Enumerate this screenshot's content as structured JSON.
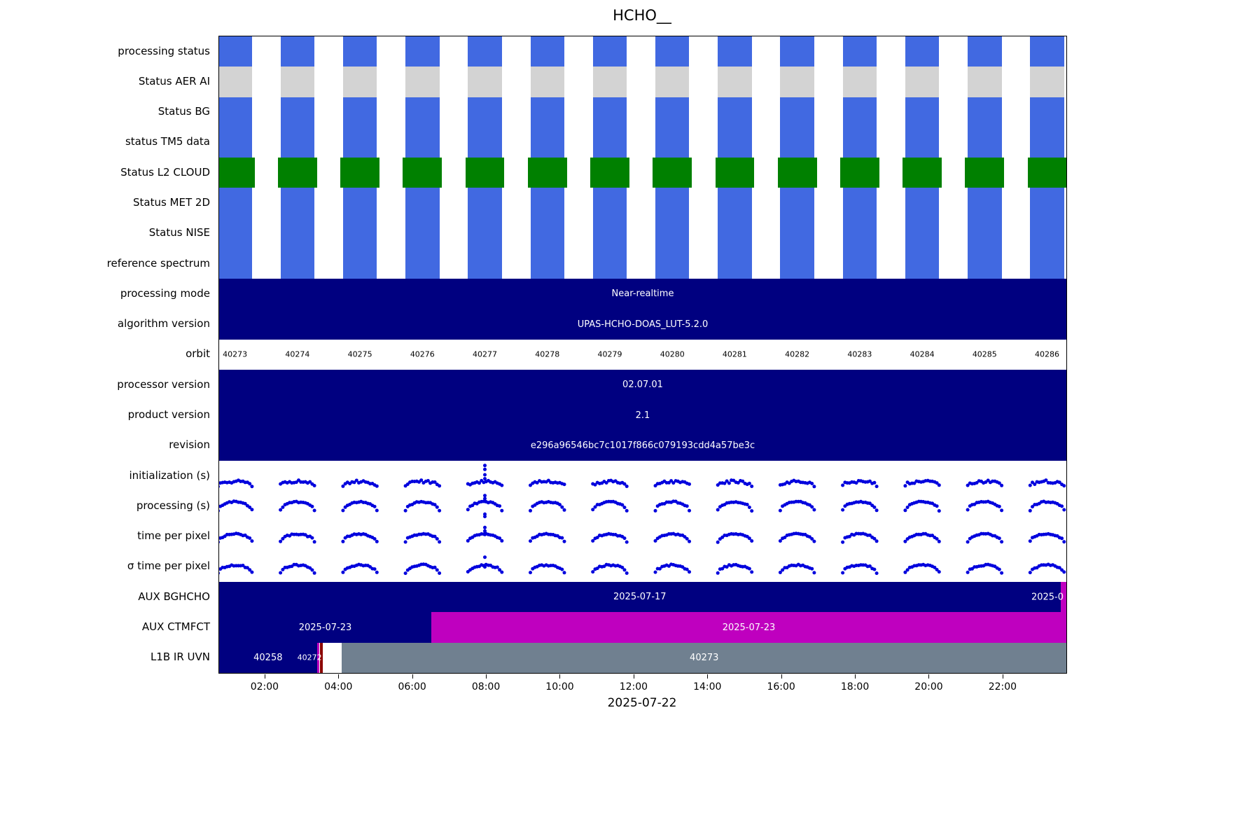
{
  "chart_data": {
    "type": "timeline-status",
    "title": "HCHO__",
    "xlabel": "2025-07-22",
    "x_ticks": [
      "02:00",
      "04:00",
      "06:00",
      "08:00",
      "10:00",
      "12:00",
      "14:00",
      "16:00",
      "18:00",
      "20:00",
      "22:00"
    ],
    "time_range_hours": [
      0.75,
      23.71
    ],
    "orbit_numbers": [
      40273,
      40274,
      40275,
      40276,
      40277,
      40278,
      40279,
      40280,
      40281,
      40282,
      40283,
      40284,
      40285,
      40286
    ],
    "orbit_first_center_hours": 1.18,
    "orbit_period_hours": 1.693,
    "legend": "none",
    "grid": "off",
    "colors": {
      "blue": "#4169e1",
      "lightgray": "#d3d3d3",
      "green": "#008000",
      "navy": "#000080",
      "magenta": "#bf00bf",
      "darkred": "#8b0000",
      "slategray": "#708090",
      "white": "#ffffff",
      "dot": "#0000dd"
    },
    "rows": [
      {
        "label": "processing status",
        "type": "blocks",
        "color_key": "blue",
        "block_width_hours": 0.92
      },
      {
        "label": "Status AER AI",
        "type": "blocks",
        "color_key": "lightgray",
        "block_width_hours": 0.92
      },
      {
        "label": "Status BG",
        "type": "blocks",
        "color_key": "blue",
        "block_width_hours": 0.92
      },
      {
        "label": "status TM5 data",
        "type": "blocks",
        "color_key": "blue",
        "block_width_hours": 0.92
      },
      {
        "label": "Status L2  CLOUD",
        "type": "blocks",
        "color_key": "green",
        "block_width_hours": 1.06
      },
      {
        "label": "Status MET 2D",
        "type": "blocks",
        "color_key": "blue",
        "block_width_hours": 0.92
      },
      {
        "label": "Status NISE",
        "type": "blocks",
        "color_key": "blue",
        "block_width_hours": 0.92
      },
      {
        "label": "reference spectrum",
        "type": "blocks",
        "color_key": "blue",
        "block_width_hours": 0.92
      },
      {
        "label": "processing mode",
        "type": "bar",
        "segments": [
          {
            "start": 0.75,
            "end": 23.71,
            "color_key": "navy",
            "text": "Near-realtime"
          }
        ]
      },
      {
        "label": "algorithm version",
        "type": "bar",
        "segments": [
          {
            "start": 0.75,
            "end": 23.71,
            "color_key": "navy",
            "text": "UPAS-HCHO-DOAS_LUT-5.2.0"
          }
        ]
      },
      {
        "label": "orbit",
        "type": "orbit_labels"
      },
      {
        "label": "processor version",
        "type": "bar",
        "segments": [
          {
            "start": 0.75,
            "end": 23.71,
            "color_key": "navy",
            "text": "02.07.01"
          }
        ]
      },
      {
        "label": "product version",
        "type": "bar",
        "segments": [
          {
            "start": 0.75,
            "end": 23.71,
            "color_key": "navy",
            "text": "2.1"
          }
        ]
      },
      {
        "label": "revision",
        "type": "bar",
        "segments": [
          {
            "start": 0.75,
            "end": 23.71,
            "color_key": "navy",
            "text": "e296a96546bc7c1017f866c079193cdd4a57be3c"
          }
        ]
      },
      {
        "label": "initialization (s)",
        "type": "scatter",
        "baseline": 0.1,
        "amplitude": 0.16,
        "noise": 0.12,
        "outlier_orbit_index": 4,
        "outlier_values": [
          0.95,
          0.78,
          0.55,
          0.38
        ]
      },
      {
        "label": "processing (s)",
        "type": "scatter",
        "baseline": 0.32,
        "amplitude": 0.36,
        "noise": 0.06,
        "outlier_orbit_index": 4,
        "outlier_values": [
          0.95,
          0.82,
          0.7,
          0.15,
          0.05
        ]
      },
      {
        "label": "time per pixel",
        "type": "scatter",
        "baseline": 0.3,
        "amplitude": 0.32,
        "noise": 0.06,
        "outlier_orbit_index": 4,
        "outlier_values": [
          0.9,
          0.75,
          0.6
        ]
      },
      {
        "label": "σ time per pixel",
        "type": "scatter",
        "baseline": 0.26,
        "amplitude": 0.32,
        "noise": 0.07,
        "outlier_orbit_index": 4,
        "outlier_values": [
          0.92,
          0.5
        ]
      },
      {
        "label": "AUX BGHCHO",
        "type": "bar",
        "segments": [
          {
            "start": 0.75,
            "end": 23.55,
            "color_key": "navy",
            "text": "2025-07-17"
          },
          {
            "start": 23.55,
            "end": 23.71,
            "color_key": "magenta",
            "text": ""
          }
        ],
        "edge_label": "2025-0"
      },
      {
        "label": "AUX CTMFCT",
        "type": "bar",
        "segments": [
          {
            "start": 0.75,
            "end": 6.5,
            "color_key": "navy",
            "text": "2025-07-23"
          },
          {
            "start": 6.5,
            "end": 23.71,
            "color_key": "magenta",
            "text": "2025-07-23"
          }
        ]
      },
      {
        "label": "L1B IR UVN",
        "type": "bar",
        "segments": [
          {
            "start": 0.75,
            "end": 3.4,
            "color_key": "navy",
            "text": "40258"
          },
          {
            "start": 3.4,
            "end": 3.46,
            "color_key": "magenta",
            "text": ""
          },
          {
            "start": 3.46,
            "end": 3.49,
            "color_key": "white",
            "text": ""
          },
          {
            "start": 3.49,
            "end": 3.55,
            "color_key": "darkred",
            "text": ""
          },
          {
            "start": 3.55,
            "end": 4.08,
            "color_key": "white",
            "text": ""
          },
          {
            "start": 4.08,
            "end": 23.71,
            "color_key": "slategray",
            "text": "40273"
          }
        ],
        "floating_labels": [
          {
            "text": "40272",
            "t": 3.2
          }
        ]
      }
    ]
  }
}
